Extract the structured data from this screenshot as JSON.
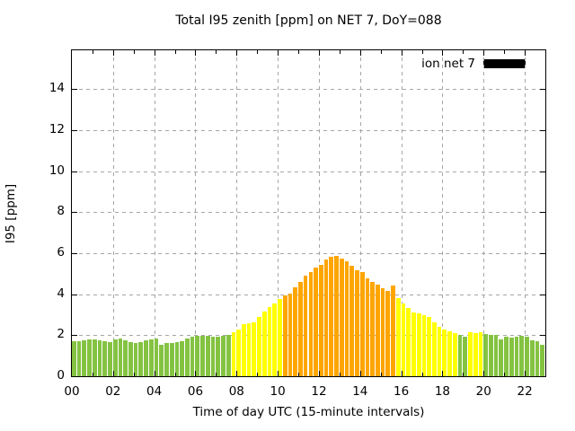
{
  "chart_data": {
    "type": "bar",
    "title": "Total I95 zenith [ppm] on NET 7, DoY=088",
    "xlabel": "Time of day UTC (15-minute intervals)",
    "ylabel": "I95 [ppm]",
    "legend": {
      "label": "ion net 7",
      "swatch_color": "#000000",
      "position": "top-right-inside"
    },
    "xlim_hours": [
      0,
      23
    ],
    "ylim": [
      0,
      15.9
    ],
    "bar_interval_minutes": 15,
    "grid": true,
    "gridline_color": "#a6a6a6",
    "xtick_labels": [
      "00",
      "02",
      "04",
      "06",
      "08",
      "10",
      "12",
      "14",
      "16",
      "18",
      "20",
      "22"
    ],
    "xtick_hours": [
      0,
      2,
      4,
      6,
      8,
      10,
      12,
      14,
      16,
      18,
      20,
      22
    ],
    "ytick_labels": [
      "0",
      "2",
      "4",
      "6",
      "8",
      "10",
      "12",
      "14"
    ],
    "ytick_values": [
      0,
      2,
      4,
      6,
      8,
      10,
      12,
      14
    ],
    "band_colors": {
      "g": "#84c342",
      "y": "#ffff00",
      "o": "#ffa500"
    },
    "times": [
      "00:00",
      "00:15",
      "00:30",
      "00:45",
      "01:00",
      "01:15",
      "01:30",
      "01:45",
      "02:00",
      "02:15",
      "02:30",
      "02:45",
      "03:00",
      "03:15",
      "03:30",
      "03:45",
      "04:00",
      "04:15",
      "04:30",
      "04:45",
      "05:00",
      "05:15",
      "05:30",
      "05:45",
      "06:00",
      "06:15",
      "06:30",
      "06:45",
      "07:00",
      "07:15",
      "07:30",
      "07:45",
      "08:00",
      "08:15",
      "08:30",
      "08:45",
      "09:00",
      "09:15",
      "09:30",
      "09:45",
      "10:00",
      "10:15",
      "10:30",
      "10:45",
      "11:00",
      "11:15",
      "11:30",
      "11:45",
      "12:00",
      "12:15",
      "12:30",
      "12:45",
      "13:00",
      "13:15",
      "13:30",
      "13:45",
      "14:00",
      "14:15",
      "14:30",
      "14:45",
      "15:00",
      "15:15",
      "15:30",
      "15:45",
      "16:00",
      "16:15",
      "16:30",
      "16:45",
      "17:00",
      "17:15",
      "17:30",
      "17:45",
      "18:00",
      "18:15",
      "18:30",
      "18:45",
      "19:00",
      "19:15",
      "19:30",
      "19:45",
      "20:00",
      "20:15",
      "20:30",
      "20:45",
      "21:00",
      "21:15",
      "21:30",
      "21:45",
      "22:00",
      "22:15",
      "22:30",
      "22:45"
    ],
    "values": [
      1.72,
      1.7,
      1.75,
      1.8,
      1.78,
      1.76,
      1.73,
      1.65,
      1.8,
      1.84,
      1.74,
      1.65,
      1.62,
      1.67,
      1.74,
      1.79,
      1.82,
      1.55,
      1.6,
      1.64,
      1.67,
      1.7,
      1.86,
      1.94,
      1.97,
      1.97,
      1.97,
      1.94,
      1.92,
      1.97,
      2.01,
      2.15,
      2.28,
      2.54,
      2.58,
      2.64,
      2.9,
      3.15,
      3.37,
      3.57,
      3.76,
      3.94,
      4.05,
      4.35,
      4.6,
      4.89,
      5.1,
      5.28,
      5.43,
      5.7,
      5.83,
      5.85,
      5.75,
      5.6,
      5.4,
      5.15,
      5.1,
      4.78,
      4.6,
      4.46,
      4.3,
      4.18,
      4.42,
      3.8,
      3.56,
      3.31,
      3.12,
      3.05,
      2.98,
      2.87,
      2.61,
      2.4,
      2.29,
      2.18,
      2.1,
      2.03,
      1.92,
      2.15,
      2.12,
      2.15,
      2.05,
      2.03,
      2.0,
      1.81,
      1.92,
      1.89,
      1.92,
      1.95,
      1.92,
      1.74,
      1.71,
      1.55
    ],
    "bands": "gggggggggggggggggggggggggggggggyyyyyyyyyyooooooooooooooooooooooyyyyyyyyyyyyggyyygggggggggggg"
  }
}
